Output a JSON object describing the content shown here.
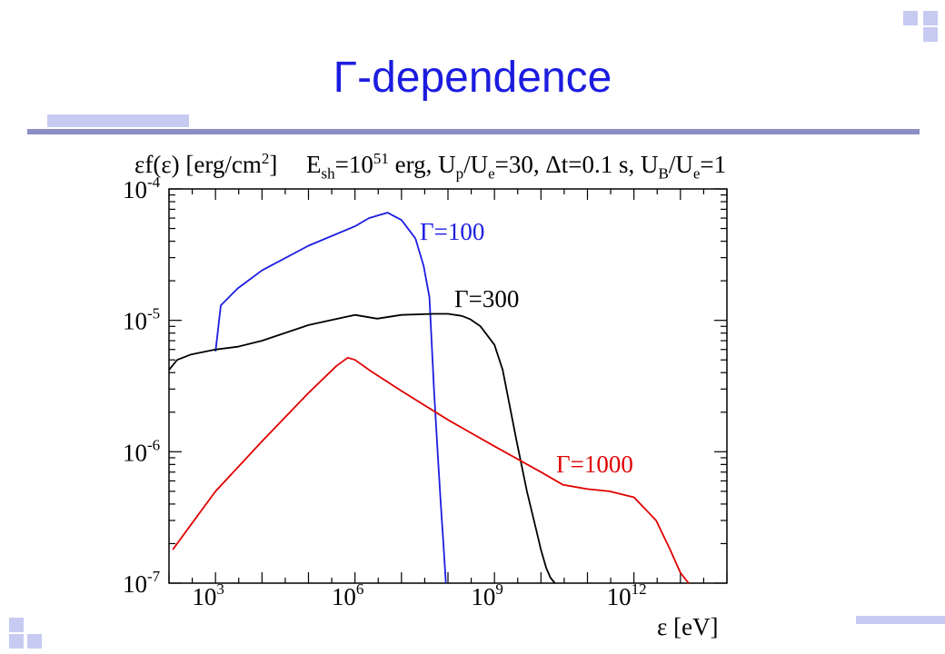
{
  "slide": {
    "title": "Γ-dependence",
    "accent_color": "#1c1ce0",
    "decor_color": "#c7cbf2",
    "rule_color": "#8a8ec4"
  },
  "chart_data": {
    "type": "line",
    "xscale": "log",
    "yscale": "log",
    "xlim": [
      100.0,
      100000000000000.0
    ],
    "ylim": [
      1e-07,
      0.0001
    ],
    "xlabel": "ε [eV]",
    "ylabel": "εf(ε) [erg/cm²]",
    "params_text": "E_sh=10^51 erg, U_p/U_e=30, Δt=0.1 s, U_B/U_e=1",
    "x_ticks": [
      {
        "value": 1000.0,
        "label_base": "10",
        "label_exp": "3"
      },
      {
        "value": 1000000.0,
        "label_base": "10",
        "label_exp": "6"
      },
      {
        "value": 1000000000.0,
        "label_base": "10",
        "label_exp": "9"
      },
      {
        "value": 1000000000000.0,
        "label_base": "10",
        "label_exp": "12"
      }
    ],
    "y_ticks": [
      {
        "value": 1e-07,
        "label_base": "10",
        "label_exp": "-7"
      },
      {
        "value": 1e-06,
        "label_base": "10",
        "label_exp": "-6"
      },
      {
        "value": 1e-05,
        "label_base": "10",
        "label_exp": "-5"
      },
      {
        "value": 0.0001,
        "label_base": "10",
        "label_exp": "-4"
      }
    ],
    "series": [
      {
        "name": "Γ=100",
        "color": "#1c1ce0",
        "x": [
          1000.0,
          1300.0,
          3000.0,
          10000.0,
          100000.0,
          1000000.0,
          2000000.0,
          5000000.0,
          10000000.0,
          20000000.0,
          30000000.0,
          40000000.0,
          50000000.0,
          60000000.0,
          70000000.0,
          80000000.0,
          90000000.0
        ],
        "y": [
          5.8e-06,
          1.3e-05,
          1.75e-05,
          2.4e-05,
          3.7e-05,
          5.2e-05,
          6e-05,
          6.6e-05,
          5.8e-05,
          4.2e-05,
          2.6e-05,
          1.5e-05,
          3e-06,
          1e-06,
          4e-07,
          2e-07,
          1e-07
        ]
      },
      {
        "name": "Γ=300",
        "color": "#000000",
        "x": [
          100.0,
          150.0,
          300.0,
          1000.0,
          3000.0,
          10000.0,
          100000.0,
          1000000.0,
          3000000.0,
          10000000.0,
          50000000.0,
          100000000.0,
          200000000.0,
          300000000.0,
          500000000.0,
          1000000000.0,
          1500000000.0,
          2000000000.0,
          3000000000.0,
          5000000000.0,
          8000000000.0,
          10000000000.0,
          13000000000.0,
          16000000000.0,
          20000000000.0
        ],
        "y": [
          4.2e-06,
          5e-06,
          5.5e-06,
          6e-06,
          6.3e-06,
          7e-06,
          9.2e-06,
          1.1e-05,
          1.03e-05,
          1.1e-05,
          1.12e-05,
          1.12e-05,
          1.08e-05,
          1.02e-05,
          9e-06,
          6.5e-06,
          4.2e-06,
          2.5e-06,
          1.2e-06,
          5e-07,
          2.5e-07,
          1.8e-07,
          1.3e-07,
          1.1e-07,
          1e-07
        ]
      },
      {
        "name": "Γ=1000",
        "color": "#e00000",
        "x": [
          120.0,
          300.0,
          1000.0,
          10000.0,
          100000.0,
          400000.0,
          700000.0,
          1000000.0,
          2000000.0,
          10000000.0,
          100000000.0,
          1000000000.0,
          10000000000.0,
          30000000000.0,
          100000000000.0,
          300000000000.0,
          1000000000000.0,
          3000000000000.0,
          6000000000000.0,
          10000000000000.0,
          15000000000000.0
        ],
        "y": [
          1.8e-07,
          2.8e-07,
          5e-07,
          1.2e-06,
          2.8e-06,
          4.5e-06,
          5.2e-06,
          5e-06,
          4.2e-06,
          2.9e-06,
          1.75e-06,
          1.1e-06,
          7e-07,
          5.6e-07,
          5.2e-07,
          5e-07,
          4.5e-07,
          3e-07,
          1.8e-07,
          1.2e-07,
          1e-07
        ]
      }
    ]
  }
}
